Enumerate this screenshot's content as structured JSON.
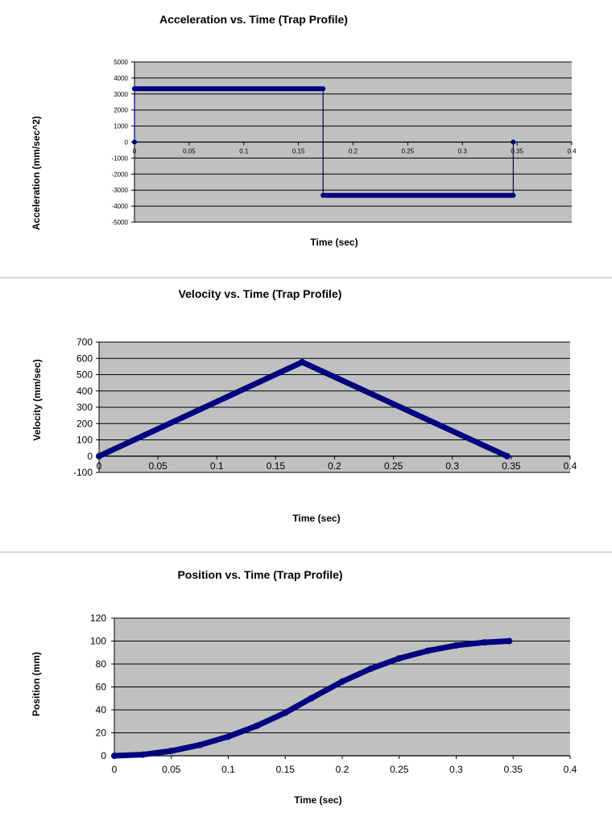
{
  "chart_data": [
    {
      "type": "line",
      "title": "Acceleration vs. Time (Trap Profile)",
      "xlabel": "Time (sec)",
      "ylabel": "Acceleration (mm/sec^2)",
      "xlim": [
        0,
        0.4
      ],
      "ylim": [
        -5000,
        5000
      ],
      "x_ticks": [
        "0",
        "0.05",
        "0.1",
        "0.15",
        "0.2",
        "0.25",
        "0.3",
        "0.35",
        "0.4"
      ],
      "y_ticks": [
        "5000",
        "4000",
        "3000",
        "2000",
        "1000",
        "0",
        "-1000",
        "-2000",
        "-3000",
        "-4000",
        "-5000"
      ],
      "grid": true,
      "legend": "none",
      "colors": {
        "series": "#000080",
        "plot_bg": "#c0c0c0",
        "grid": "#000000"
      },
      "series": [
        {
          "x": [
            0,
            0,
            0.1725,
            0.1725,
            0.3465,
            0.3465
          ],
          "y": [
            0,
            3330,
            3330,
            -3330,
            -3330,
            0
          ]
        }
      ]
    },
    {
      "type": "line",
      "title": "Velocity vs. Time (Trap Profile)",
      "xlabel": "Time (sec)",
      "ylabel": "Velocity (mm/sec)",
      "xlim": [
        0,
        0.4
      ],
      "ylim": [
        -100,
        700
      ],
      "x_ticks": [
        "0",
        "0.05",
        "0.1",
        "0.15",
        "0.2",
        "0.25",
        "0.3",
        "0.35",
        "0.4"
      ],
      "y_ticks": [
        "700",
        "600",
        "500",
        "400",
        "300",
        "200",
        "100",
        "0",
        "-100"
      ],
      "grid": true,
      "legend": "none",
      "colors": {
        "series": "#000080",
        "plot_bg": "#c0c0c0",
        "grid": "#000000"
      },
      "series": [
        {
          "x": [
            0,
            0.1725,
            0.3465
          ],
          "y": [
            0,
            577,
            0
          ]
        }
      ]
    },
    {
      "type": "line",
      "title": "Position vs. Time (Trap Profile)",
      "xlabel": "Time (sec)",
      "ylabel": "Position (mm)",
      "xlim": [
        0,
        0.4
      ],
      "ylim": [
        0,
        120
      ],
      "x_ticks": [
        "0",
        "0.05",
        "0.1",
        "0.15",
        "0.2",
        "0.25",
        "0.3",
        "0.35",
        "0.4"
      ],
      "y_ticks": [
        "120",
        "100",
        "80",
        "60",
        "40",
        "20",
        "0"
      ],
      "grid": true,
      "legend": "none",
      "colors": {
        "series": "#000080",
        "plot_bg": "#c0c0c0",
        "grid": "#000000"
      },
      "series": [
        {
          "x": [
            0,
            0.025,
            0.05,
            0.075,
            0.1,
            0.125,
            0.15,
            0.1725,
            0.2,
            0.225,
            0.25,
            0.275,
            0.3,
            0.325,
            0.3465
          ],
          "y": [
            0,
            1,
            4.2,
            9.4,
            16.7,
            26.1,
            37.5,
            50,
            64.7,
            75.9,
            84.9,
            91.5,
            96.2,
            98.9,
            100
          ]
        }
      ]
    }
  ]
}
